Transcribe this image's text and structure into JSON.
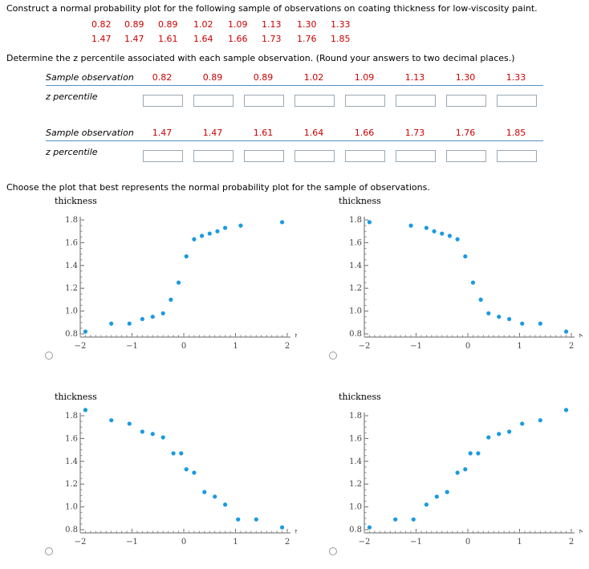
{
  "question": {
    "intro": "Construct a normal probability plot for the following sample of observations on coating thickness for low-viscosity paint.",
    "obs_row1": [
      "0.82",
      "0.89",
      "0.89",
      "1.02",
      "1.09",
      "1.13",
      "1.30",
      "1.33"
    ],
    "obs_row2": [
      "1.47",
      "1.47",
      "1.61",
      "1.64",
      "1.66",
      "1.73",
      "1.76",
      "1.85"
    ],
    "instruction": "Determine the z percentile associated with each sample observation. (Round your answers to two decimal places.)",
    "table_label_obs": "Sample observation",
    "table_label_z": "z percentile",
    "choose": "Choose the plot that best represents the normal probability plot for the sample of observations."
  },
  "chart_data": [
    {
      "type": "scatter",
      "ylabel": "thickness",
      "xlabel": "z",
      "xlim": [
        -2,
        2
      ],
      "ylim": [
        0.8,
        1.8
      ],
      "xticks": [
        "-2",
        "-1",
        "0",
        "1",
        "2"
      ],
      "yticks": [
        "0.8",
        "1.0",
        "1.2",
        "1.4",
        "1.6",
        "1.8"
      ],
      "color": "#1a9ae0",
      "points": [
        [
          -1.9,
          0.82
        ],
        [
          -1.4,
          0.89
        ],
        [
          -1.05,
          0.89
        ],
        [
          -0.8,
          0.93
        ],
        [
          -0.6,
          0.95
        ],
        [
          -0.4,
          0.98
        ],
        [
          -0.25,
          1.1
        ],
        [
          -0.1,
          1.25
        ],
        [
          0.05,
          1.48
        ],
        [
          0.2,
          1.63
        ],
        [
          0.35,
          1.66
        ],
        [
          0.5,
          1.68
        ],
        [
          0.65,
          1.7
        ],
        [
          0.8,
          1.73
        ],
        [
          1.1,
          1.75
        ],
        [
          1.9,
          1.78
        ]
      ]
    },
    {
      "type": "scatter",
      "ylabel": "thickness",
      "xlabel": "z",
      "xlim": [
        -2,
        2
      ],
      "ylim": [
        0.8,
        1.8
      ],
      "xticks": [
        "-2",
        "-1",
        "0",
        "1",
        "2"
      ],
      "yticks": [
        "0.8",
        "1.0",
        "1.2",
        "1.4",
        "1.6",
        "1.8"
      ],
      "color": "#1a9ae0",
      "points": [
        [
          -1.9,
          1.78
        ],
        [
          -1.1,
          1.75
        ],
        [
          -0.8,
          1.73
        ],
        [
          -0.65,
          1.7
        ],
        [
          -0.5,
          1.68
        ],
        [
          -0.35,
          1.66
        ],
        [
          -0.2,
          1.63
        ],
        [
          -0.05,
          1.48
        ],
        [
          0.1,
          1.25
        ],
        [
          0.25,
          1.1
        ],
        [
          0.4,
          0.98
        ],
        [
          0.6,
          0.95
        ],
        [
          0.8,
          0.93
        ],
        [
          1.05,
          0.89
        ],
        [
          1.4,
          0.89
        ],
        [
          1.9,
          0.82
        ]
      ]
    },
    {
      "type": "scatter",
      "ylabel": "thickness",
      "xlabel": "z",
      "xlim": [
        -2,
        2
      ],
      "ylim": [
        0.8,
        1.8
      ],
      "xticks": [
        "-2",
        "-1",
        "0",
        "1",
        "2"
      ],
      "yticks": [
        "0.8",
        "1.0",
        "1.2",
        "1.4",
        "1.6",
        "1.8"
      ],
      "color": "#1a9ae0",
      "points": [
        [
          -1.9,
          1.85
        ],
        [
          -1.4,
          1.76
        ],
        [
          -1.05,
          1.73
        ],
        [
          -0.8,
          1.66
        ],
        [
          -0.6,
          1.64
        ],
        [
          -0.4,
          1.61
        ],
        [
          -0.2,
          1.47
        ],
        [
          -0.05,
          1.47
        ],
        [
          0.05,
          1.33
        ],
        [
          0.2,
          1.3
        ],
        [
          0.4,
          1.13
        ],
        [
          0.6,
          1.09
        ],
        [
          0.8,
          1.02
        ],
        [
          1.05,
          0.89
        ],
        [
          1.4,
          0.89
        ],
        [
          1.9,
          0.82
        ]
      ]
    },
    {
      "type": "scatter",
      "ylabel": "thickness",
      "xlabel": "z",
      "xlim": [
        -2,
        2
      ],
      "ylim": [
        0.8,
        1.8
      ],
      "xticks": [
        "-2",
        "-1",
        "0",
        "1",
        "2"
      ],
      "yticks": [
        "0.8",
        "1.0",
        "1.2",
        "1.4",
        "1.6",
        "1.8"
      ],
      "color": "#1a9ae0",
      "points": [
        [
          -1.9,
          0.82
        ],
        [
          -1.4,
          0.89
        ],
        [
          -1.05,
          0.89
        ],
        [
          -0.8,
          1.02
        ],
        [
          -0.6,
          1.09
        ],
        [
          -0.4,
          1.13
        ],
        [
          -0.2,
          1.3
        ],
        [
          -0.05,
          1.33
        ],
        [
          0.05,
          1.47
        ],
        [
          0.2,
          1.47
        ],
        [
          0.4,
          1.61
        ],
        [
          0.6,
          1.64
        ],
        [
          0.8,
          1.66
        ],
        [
          1.05,
          1.73
        ],
        [
          1.4,
          1.76
        ],
        [
          1.9,
          1.85
        ]
      ]
    }
  ]
}
